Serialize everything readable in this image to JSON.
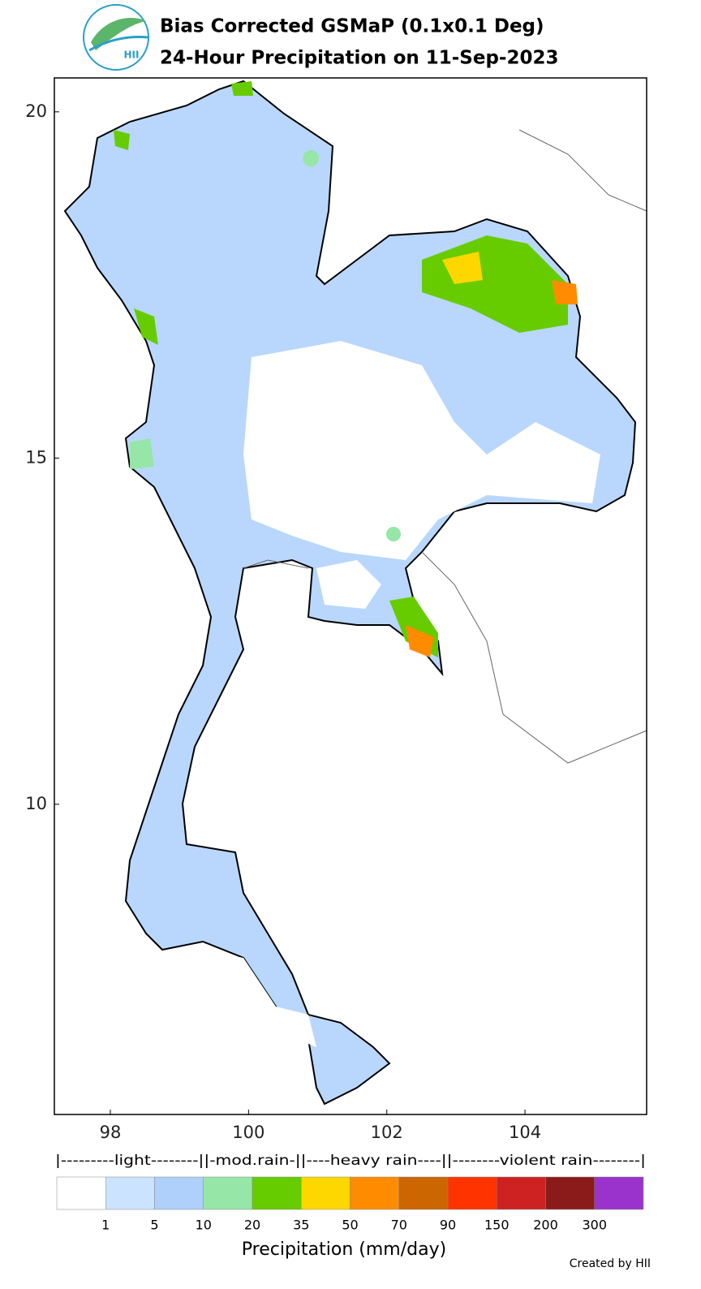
{
  "header": {
    "title_line1": "Bias Corrected GSMaP (0.1x0.1 Deg)",
    "title_line2": "24-Hour Precipitation on 11-Sep-2023",
    "logo_text": "HII"
  },
  "map": {
    "xlim": [
      97.19,
      105.76
    ],
    "ylim": [
      5.52,
      20.49
    ],
    "xticks": [
      98,
      100,
      102,
      104
    ],
    "yticks": [
      10,
      15,
      20
    ]
  },
  "legend": {
    "category_line": "|---------light--------||-mod.rain-||----heavy rain----||--------violent rain--------|",
    "colors": [
      "#ffffff",
      "#cce3ff",
      "#aed0fb",
      "#96e6a8",
      "#66cc00",
      "#ffd700",
      "#ff8c00",
      "#cc6600",
      "#ff3300",
      "#cc2222",
      "#8b1a1a",
      "#9933cc"
    ],
    "ticks": [
      1,
      5,
      10,
      20,
      35,
      50,
      70,
      90,
      150,
      200,
      300
    ],
    "label": "Precipitation (mm/day)"
  },
  "footer": {
    "credit": "Created by HII"
  }
}
